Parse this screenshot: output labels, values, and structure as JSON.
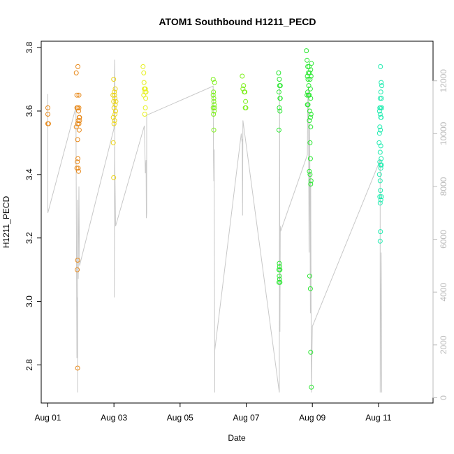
{
  "chart_data": {
    "type": "scatter",
    "title": "ATOM1 Southbound H1211_PECD",
    "xlabel": "Date",
    "ylabel": "H1211_PECD",
    "x_range_days": [
      -0.2,
      11.65
    ],
    "x_ticks": [
      {
        "day": 0,
        "label": "Aug 01"
      },
      {
        "day": 2,
        "label": "Aug 03"
      },
      {
        "day": 4,
        "label": "Aug 05"
      },
      {
        "day": 6,
        "label": "Aug 07"
      },
      {
        "day": 8,
        "label": "Aug 09"
      },
      {
        "day": 10,
        "label": "Aug 11"
      }
    ],
    "ylim": [
      2.68,
      3.82
    ],
    "y_ticks": [
      "2.8",
      "3.0",
      "3.2",
      "3.4",
      "3.6",
      "3.8"
    ],
    "y2lim": [
      -200,
      13500
    ],
    "y2_ticks": [
      "0",
      "2000",
      "4000",
      "6000",
      "8000",
      "10000",
      "12000"
    ],
    "grid": false,
    "points_series": [
      {
        "color": "#e8891a",
        "points": [
          [
            0.0,
            3.61
          ],
          [
            0.0,
            3.59
          ],
          [
            0.0,
            3.56
          ],
          [
            0.02,
            3.56
          ],
          [
            0.86,
            3.72
          ],
          [
            0.88,
            3.65
          ],
          [
            0.9,
            3.61
          ],
          [
            0.91,
            3.74
          ],
          [
            0.9,
            3.56
          ],
          [
            0.88,
            3.61
          ],
          [
            0.86,
            3.55
          ],
          [
            0.92,
            3.57
          ],
          [
            0.9,
            3.51
          ],
          [
            0.91,
            3.45
          ],
          [
            0.89,
            3.44
          ],
          [
            0.88,
            3.42
          ],
          [
            0.93,
            3.41
          ],
          [
            0.92,
            3.42
          ],
          [
            0.9,
            3.13
          ],
          [
            0.89,
            3.1
          ],
          [
            0.9,
            2.79
          ],
          [
            0.94,
            3.65
          ],
          [
            0.95,
            3.58
          ],
          [
            0.94,
            3.56
          ],
          [
            0.96,
            3.57
          ],
          [
            0.95,
            3.54
          ],
          [
            0.93,
            3.6
          ],
          [
            0.94,
            3.61
          ],
          [
            0.96,
            3.58
          ]
        ]
      },
      {
        "color": "#ecd51a",
        "points": [
          [
            1.97,
            3.65
          ],
          [
            1.99,
            3.63
          ],
          [
            2.0,
            3.61
          ],
          [
            2.02,
            3.65
          ],
          [
            2.03,
            3.59
          ],
          [
            2.0,
            3.56
          ],
          [
            1.98,
            3.58
          ],
          [
            2.04,
            3.62
          ],
          [
            2.05,
            3.6
          ],
          [
            2.01,
            3.66
          ],
          [
            1.99,
            3.7
          ],
          [
            1.98,
            3.5
          ],
          [
            1.99,
            3.39
          ],
          [
            2.02,
            3.57
          ],
          [
            2.03,
            3.64
          ],
          [
            2.06,
            3.63
          ],
          [
            2.04,
            3.67
          ]
        ]
      },
      {
        "color": "#e6f020",
        "points": [
          [
            2.88,
            3.74
          ],
          [
            2.9,
            3.72
          ],
          [
            2.91,
            3.69
          ],
          [
            2.93,
            3.67
          ],
          [
            2.94,
            3.66
          ],
          [
            2.95,
            3.67
          ],
          [
            2.97,
            3.66
          ],
          [
            2.96,
            3.64
          ],
          [
            2.92,
            3.67
          ],
          [
            2.9,
            3.65
          ],
          [
            2.93,
            3.59
          ],
          [
            2.95,
            3.61
          ]
        ]
      },
      {
        "color": "#7df01a",
        "points": [
          [
            5.0,
            3.7
          ],
          [
            5.01,
            3.66
          ],
          [
            5.02,
            3.64
          ],
          [
            5.03,
            3.62
          ],
          [
            5.04,
            3.69
          ],
          [
            5.0,
            3.61
          ],
          [
            5.01,
            3.59
          ],
          [
            5.02,
            3.63
          ],
          [
            5.04,
            3.61
          ],
          [
            5.03,
            3.6
          ],
          [
            5.0,
            3.65
          ],
          [
            5.02,
            3.54
          ],
          [
            5.88,
            3.71
          ],
          [
            5.9,
            3.67
          ],
          [
            5.92,
            3.68
          ],
          [
            5.94,
            3.66
          ],
          [
            5.96,
            3.66
          ],
          [
            5.98,
            3.63
          ],
          [
            5.97,
            3.61
          ],
          [
            5.99,
            3.61
          ]
        ]
      },
      {
        "color": "#2be832",
        "points": [
          [
            6.98,
            3.72
          ],
          [
            7.0,
            3.7
          ],
          [
            7.01,
            3.68
          ],
          [
            7.03,
            3.68
          ],
          [
            6.99,
            3.66
          ],
          [
            7.02,
            3.64
          ],
          [
            7.03,
            3.64
          ],
          [
            7.0,
            3.61
          ],
          [
            7.02,
            3.6
          ],
          [
            6.99,
            3.54
          ],
          [
            7.0,
            3.12
          ],
          [
            7.01,
            3.11
          ],
          [
            6.99,
            3.1
          ],
          [
            7.02,
            3.1
          ],
          [
            7.0,
            3.08
          ],
          [
            7.01,
            3.07
          ],
          [
            6.99,
            3.06
          ],
          [
            7.02,
            3.06
          ],
          [
            7.82,
            3.79
          ],
          [
            7.84,
            3.76
          ],
          [
            7.86,
            3.74
          ],
          [
            7.85,
            3.71
          ],
          [
            7.87,
            3.7
          ],
          [
            7.88,
            3.72
          ],
          [
            7.89,
            3.68
          ],
          [
            7.86,
            3.66
          ],
          [
            7.84,
            3.65
          ],
          [
            7.88,
            3.65
          ],
          [
            7.85,
            3.62
          ],
          [
            7.87,
            3.62
          ],
          [
            7.9,
            3.74
          ],
          [
            7.92,
            3.72
          ],
          [
            7.95,
            3.73
          ],
          [
            7.96,
            3.71
          ],
          [
            7.93,
            3.7
          ],
          [
            7.94,
            3.67
          ],
          [
            7.91,
            3.65
          ],
          [
            7.95,
            3.64
          ],
          [
            7.92,
            3.6
          ],
          [
            7.96,
            3.59
          ],
          [
            7.95,
            3.55
          ],
          [
            7.93,
            3.5
          ],
          [
            7.94,
            3.45
          ],
          [
            7.91,
            3.41
          ],
          [
            7.93,
            3.4
          ],
          [
            7.96,
            3.38
          ],
          [
            7.95,
            3.37
          ],
          [
            7.92,
            3.08
          ],
          [
            7.94,
            3.04
          ],
          [
            7.95,
            2.84
          ],
          [
            7.97,
            2.73
          ],
          [
            7.94,
            3.58
          ],
          [
            7.91,
            3.57
          ],
          [
            7.97,
            3.75
          ]
        ]
      },
      {
        "color": "#20ecb0",
        "points": [
          [
            10.06,
            3.74
          ],
          [
            10.08,
            3.69
          ],
          [
            10.1,
            3.68
          ],
          [
            10.07,
            3.66
          ],
          [
            10.05,
            3.64
          ],
          [
            10.09,
            3.64
          ],
          [
            10.06,
            3.61
          ],
          [
            10.04,
            3.61
          ],
          [
            10.1,
            3.61
          ],
          [
            10.03,
            3.6
          ],
          [
            10.05,
            3.59
          ],
          [
            10.07,
            3.58
          ],
          [
            10.08,
            3.58
          ],
          [
            10.04,
            3.55
          ],
          [
            10.06,
            3.54
          ],
          [
            10.03,
            3.53
          ],
          [
            10.02,
            3.5
          ],
          [
            10.07,
            3.49
          ],
          [
            10.05,
            3.47
          ],
          [
            10.08,
            3.45
          ],
          [
            10.04,
            3.44
          ],
          [
            10.06,
            3.43
          ],
          [
            10.09,
            3.43
          ],
          [
            10.07,
            3.42
          ],
          [
            10.03,
            3.4
          ],
          [
            10.05,
            3.38
          ],
          [
            10.06,
            3.35
          ],
          [
            10.04,
            3.33
          ],
          [
            10.09,
            3.33
          ],
          [
            10.07,
            3.32
          ],
          [
            10.05,
            3.31
          ],
          [
            10.06,
            3.22
          ],
          [
            10.05,
            3.19
          ]
        ]
      }
    ],
    "line_series": {
      "color": "#c8c8c8",
      "axis": "right",
      "points": [
        [
          0.0,
          11500
        ],
        [
          0.0,
          7000
        ],
        [
          0.85,
          11000
        ],
        [
          0.88,
          1500
        ],
        [
          0.89,
          3800
        ],
        [
          0.9,
          2800
        ],
        [
          0.9,
          200
        ],
        [
          0.9,
          7500
        ],
        [
          0.92,
          4500
        ],
        [
          0.94,
          8000
        ],
        [
          0.95,
          6500
        ],
        [
          0.96,
          5000
        ],
        [
          2.0,
          10200
        ],
        [
          2.02,
          12800
        ],
        [
          2.03,
          11500
        ],
        [
          2.01,
          3800
        ],
        [
          2.02,
          9500
        ],
        [
          2.05,
          6500
        ],
        [
          2.92,
          10300
        ],
        [
          2.95,
          8500
        ],
        [
          2.97,
          9000
        ],
        [
          2.98,
          6800
        ],
        [
          2.99,
          7000
        ],
        [
          2.99,
          10700
        ],
        [
          5.0,
          11800
        ],
        [
          5.01,
          9000
        ],
        [
          5.02,
          8200
        ],
        [
          5.03,
          9400
        ],
        [
          5.05,
          200
        ],
        [
          5.05,
          1800
        ],
        [
          5.85,
          10000
        ],
        [
          5.87,
          9700
        ],
        [
          5.88,
          9800
        ],
        [
          5.89,
          6900
        ],
        [
          5.9,
          10500
        ],
        [
          7.0,
          200
        ],
        [
          7.01,
          11800
        ],
        [
          7.02,
          2500
        ],
        [
          7.03,
          6500
        ],
        [
          7.04,
          6300
        ],
        [
          7.85,
          9200
        ],
        [
          7.86,
          11200
        ],
        [
          7.88,
          11800
        ],
        [
          7.9,
          5500
        ],
        [
          7.92,
          10400
        ],
        [
          7.94,
          3200
        ],
        [
          7.95,
          8500
        ],
        [
          7.97,
          200
        ],
        [
          8.0,
          2700
        ],
        [
          10.05,
          9000
        ],
        [
          10.05,
          200
        ],
        [
          10.08,
          5500
        ],
        [
          10.1,
          200
        ]
      ]
    }
  }
}
